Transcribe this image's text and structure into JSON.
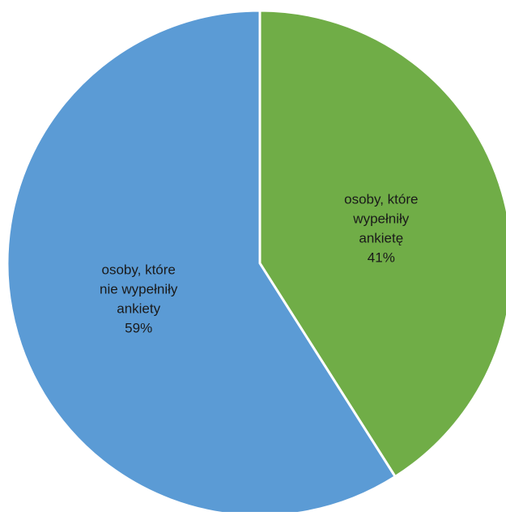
{
  "chart_data": {
    "type": "pie",
    "title": "",
    "slices": [
      {
        "label_lines": [
          "osoby, które",
          "wypełniły",
          "ankietę"
        ],
        "percent_label": "41%",
        "value": 41,
        "color": "#70ad47"
      },
      {
        "label_lines": [
          "osoby, które",
          "nie wypełniły",
          "ankiety"
        ],
        "percent_label": "59%",
        "value": 59,
        "color": "#5b9bd5"
      }
    ],
    "start_angle_deg": 0,
    "direction": "clockwise",
    "slice_separator_color": "#ffffff",
    "legend": "none"
  }
}
